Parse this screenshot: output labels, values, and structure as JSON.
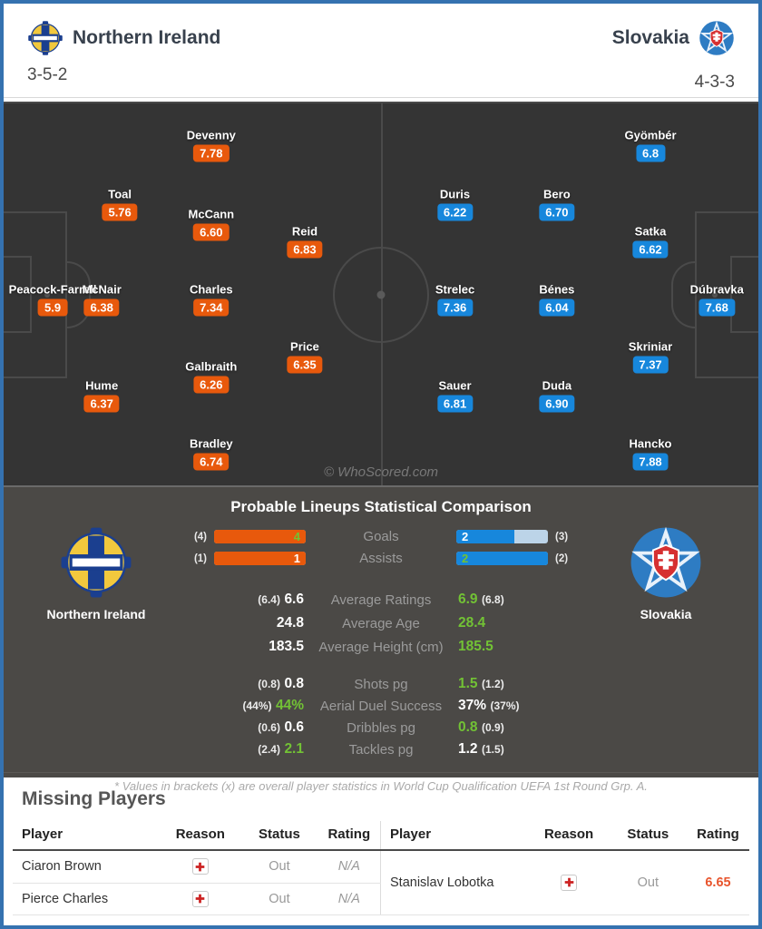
{
  "header": {
    "home": {
      "name": "Northern Ireland",
      "formation": "3-5-2"
    },
    "away": {
      "name": "Slovakia",
      "formation": "4-3-3"
    }
  },
  "pitch": {
    "watermark": "© WhoScored.com",
    "home_players": [
      {
        "name": "Devenny",
        "rating": "7.78",
        "x": "27.5%",
        "y": "10.9%"
      },
      {
        "name": "Toal",
        "rating": "5.76",
        "x": "15.4%",
        "y": "26.4%"
      },
      {
        "name": "McCann",
        "rating": "6.60",
        "x": "27.5%",
        "y": "31.6%"
      },
      {
        "name": "Reid",
        "rating": "6.83",
        "x": "39.9%",
        "y": "36.1%"
      },
      {
        "name": "Peacock-Farrell",
        "rating": "5.9",
        "x": "6.5%",
        "y": "51.3%"
      },
      {
        "name": "McNair",
        "rating": "6.38",
        "x": "13%",
        "y": "51.3%"
      },
      {
        "name": "Charles",
        "rating": "7.34",
        "x": "27.5%",
        "y": "51.3%"
      },
      {
        "name": "Price",
        "rating": "6.35",
        "x": "39.9%",
        "y": "66.3%"
      },
      {
        "name": "Galbraith",
        "rating": "6.26",
        "x": "27.5%",
        "y": "71.5%"
      },
      {
        "name": "Hume",
        "rating": "6.37",
        "x": "13%",
        "y": "76.5%"
      },
      {
        "name": "Bradley",
        "rating": "6.74",
        "x": "27.5%",
        "y": "91.7%"
      }
    ],
    "away_players": [
      {
        "name": "Gyömbér",
        "rating": "6.8",
        "x": "85.7%",
        "y": "10.9%"
      },
      {
        "name": "Duris",
        "rating": "6.22",
        "x": "59.8%",
        "y": "26.4%"
      },
      {
        "name": "Bero",
        "rating": "6.70",
        "x": "73.3%",
        "y": "26.4%"
      },
      {
        "name": "Satka",
        "rating": "6.62",
        "x": "85.7%",
        "y": "36.1%"
      },
      {
        "name": "Strelec",
        "rating": "7.36",
        "x": "59.8%",
        "y": "51.3%"
      },
      {
        "name": "Bénes",
        "rating": "6.04",
        "x": "73.3%",
        "y": "51.3%"
      },
      {
        "name": "Dúbravka",
        "rating": "7.68",
        "x": "94.5%",
        "y": "51.3%"
      },
      {
        "name": "Skriniar",
        "rating": "7.37",
        "x": "85.7%",
        "y": "66.3%"
      },
      {
        "name": "Sauer",
        "rating": "6.81",
        "x": "59.8%",
        "y": "76.5%"
      },
      {
        "name": "Duda",
        "rating": "6.90",
        "x": "73.3%",
        "y": "76.5%"
      },
      {
        "name": "Hancko",
        "rating": "7.88",
        "x": "85.7%",
        "y": "91.7%"
      }
    ]
  },
  "comparison": {
    "title": "Probable Lineups Statistical Comparison",
    "home_team_label": "Northern Ireland",
    "away_team_label": "Slovakia",
    "bars": [
      {
        "label": "Goals",
        "home_bracket": "(4)",
        "home_value": "4",
        "home_best": "true",
        "home_fill": "100%",
        "away_value": "2",
        "away_bracket": "(3)",
        "away_best": "false",
        "away_fill": "63%"
      },
      {
        "label": "Assists",
        "home_bracket": "(1)",
        "home_value": "1",
        "home_best": "false",
        "home_fill": "100%",
        "away_value": "2",
        "away_bracket": "(2)",
        "away_best": "true",
        "away_fill": "100%"
      }
    ],
    "stats_main": [
      {
        "label": "Average Ratings",
        "home_bracket": "(6.4)",
        "home_value": "6.6",
        "home_best": "false",
        "away_value": "6.9",
        "away_bracket": "(6.8)",
        "away_best": "true"
      },
      {
        "label": "Average Age",
        "home_bracket": "",
        "home_value": "24.8",
        "home_best": "false",
        "away_value": "28.4",
        "away_bracket": "",
        "away_best": "true"
      },
      {
        "label": "Average Height (cm)",
        "home_bracket": "",
        "home_value": "183.5",
        "home_best": "false",
        "away_value": "185.5",
        "away_bracket": "",
        "away_best": "true"
      }
    ],
    "stats_secondary": [
      {
        "label": "Shots pg",
        "home_bracket": "(0.8)",
        "home_value": "0.8",
        "home_best": "false",
        "away_value": "1.5",
        "away_bracket": "(1.2)",
        "away_best": "true"
      },
      {
        "label": "Aerial Duel Success",
        "home_bracket": "(44%)",
        "home_value": "44%",
        "home_best": "true",
        "away_value": "37%",
        "away_bracket": "(37%)",
        "away_best": "false"
      },
      {
        "label": "Dribbles pg",
        "home_bracket": "(0.6)",
        "home_value": "0.6",
        "home_best": "false",
        "away_value": "0.8",
        "away_bracket": "(0.9)",
        "away_best": "true"
      },
      {
        "label": "Tackles pg",
        "home_bracket": "(2.4)",
        "home_value": "2.1",
        "home_best": "true",
        "away_value": "1.2",
        "away_bracket": "(1.5)",
        "away_best": "false"
      }
    ],
    "footnote": "* Values in brackets (x) are overall player statistics in World Cup Qualification UEFA 1st Round Grp. A."
  },
  "missing": {
    "title": "Missing Players",
    "columns": [
      "Player",
      "Reason",
      "Status",
      "Rating"
    ],
    "home_rows": [
      {
        "player": "Ciaron Brown",
        "status": "Out",
        "rating": "N/A",
        "rating_is_na": "true"
      },
      {
        "player": "Pierce Charles",
        "status": "Out",
        "rating": "N/A",
        "rating_is_na": "true"
      }
    ],
    "away_rows": [
      {
        "player": "Stanislav Lobotka",
        "status": "Out",
        "rating": "6.65",
        "rating_is_na": "false"
      }
    ]
  },
  "colors": {
    "home_accent": "#e8590c",
    "away_accent": "#1787dc",
    "best_green": "#72c235",
    "bar_remainder": "#bcd4e8",
    "rating_orange": "#e8552d",
    "frame_blue": "#3572b0",
    "pitch_bg": "#343434",
    "stats_bg": "#4b4946"
  }
}
